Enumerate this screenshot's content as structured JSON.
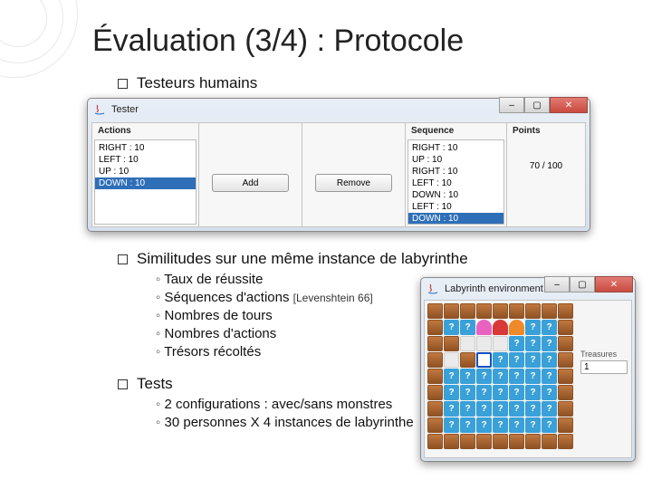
{
  "title": "Évaluation (3/4) : Protocole",
  "bullets": {
    "b1": "Testeurs humains",
    "b2": "Similitudes sur une même instance de labyrinthe",
    "b3": "Tests"
  },
  "similitudes": {
    "i1": "Taux de réussite",
    "i2_prefix": "Séquences d'actions ",
    "i2_ref": "[Levenshtein 66]",
    "i3": "Nombres de tours",
    "i4": "Nombres d'actions",
    "i5": "Trésors récoltés"
  },
  "tests": {
    "i1": "2 configurations : avec/sans monstres",
    "i2": "30 personnes X 4 instances de labyrinthe"
  },
  "tester": {
    "title": "Tester",
    "headers": {
      "actions": "Actions",
      "sequence": "Sequence",
      "points": "Points"
    },
    "actions": {
      "a0": "RIGHT : 10",
      "a1": "LEFT : 10",
      "a2": "UP : 10",
      "a3": "DOWN : 10"
    },
    "sequence": {
      "s0": "RIGHT : 10",
      "s1": "UP : 10",
      "s2": "RIGHT : 10",
      "s3": "LEFT : 10",
      "s4": "DOWN : 10",
      "s5": "LEFT : 10",
      "s6": "DOWN : 10"
    },
    "add_btn": "Add",
    "remove_btn": "Remove",
    "points_value": "70 / 100"
  },
  "labyrinth": {
    "title": "Labyrinth environment",
    "treasures_label": "Treasures",
    "treasures_value": "1"
  },
  "colors": {
    "wall": "#c07840",
    "wall_dark": "#8f5224",
    "unknown": "#3aa0d8",
    "unknown_text": "#ffffff",
    "floor": "#eaeaea",
    "agent_border": "#1050c0",
    "monster_pink": "#e863c0",
    "monster_red": "#d83838",
    "monster_orange": "#ef8a2a",
    "title_color": "#222222",
    "selection": "#2f6fb8"
  },
  "grid": [
    [
      "W",
      "W",
      "W",
      "W",
      "W",
      "W",
      "W",
      "W",
      "W"
    ],
    [
      "W",
      "?",
      "?",
      "P",
      "R",
      "O",
      "?",
      "?",
      "W"
    ],
    [
      "W",
      "W",
      "F",
      "F",
      "F",
      "?",
      "?",
      "?",
      "W"
    ],
    [
      "W",
      "F",
      "W",
      "A",
      "?",
      "?",
      "?",
      "?",
      "W"
    ],
    [
      "W",
      "?",
      "?",
      "?",
      "?",
      "?",
      "?",
      "?",
      "W"
    ],
    [
      "W",
      "?",
      "?",
      "?",
      "?",
      "?",
      "?",
      "?",
      "W"
    ],
    [
      "W",
      "?",
      "?",
      "?",
      "?",
      "?",
      "?",
      "?",
      "W"
    ],
    [
      "W",
      "?",
      "?",
      "?",
      "?",
      "?",
      "?",
      "?",
      "W"
    ],
    [
      "W",
      "W",
      "W",
      "W",
      "W",
      "W",
      "W",
      "W",
      "W"
    ]
  ]
}
